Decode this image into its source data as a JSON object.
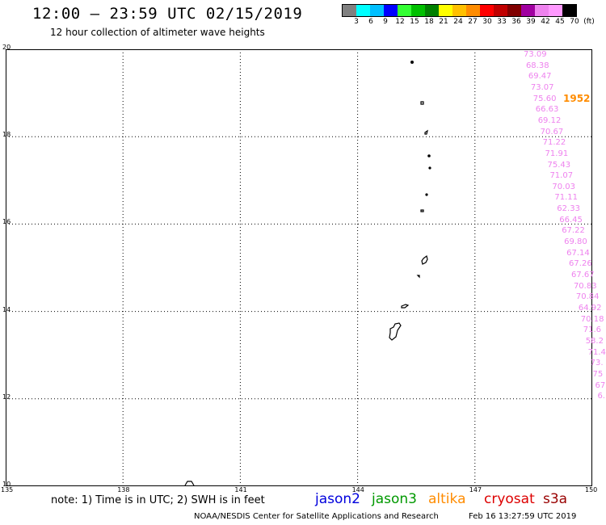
{
  "title": "12:00 – 23:59 UTC 02/15/2019",
  "subtitle": "12 hour collection of altimeter wave heights",
  "color_scale": {
    "unit": "(ft)",
    "swatches": [
      "#808080",
      "#00ffff",
      "#00bfff",
      "#0000ff",
      "#33ff33",
      "#00c000",
      "#008000",
      "#ffff00",
      "#ffc000",
      "#ff8c00",
      "#ff0000",
      "#c00000",
      "#800000",
      "#a000a0",
      "#ee82ee",
      "#ff99ff",
      "#000000"
    ],
    "labels": [
      "3",
      "6",
      "9",
      "12",
      "15",
      "18",
      "21",
      "24",
      "27",
      "30",
      "33",
      "36",
      "39",
      "42",
      "45",
      "70"
    ]
  },
  "y_axis": {
    "labels": [
      "20",
      "18",
      "16",
      "14",
      "12",
      "10"
    ],
    "range": [
      10,
      20
    ]
  },
  "x_axis": {
    "labels": [
      "135",
      "138",
      "141",
      "144",
      "147",
      "150"
    ],
    "range": [
      135,
      150
    ]
  },
  "track": {
    "satellite_id": "1952",
    "values": [
      "73.09",
      "68.38",
      "69.47",
      "73.07",
      "75.60",
      "66.63",
      "69.12",
      "70.67",
      "71.22",
      "71.91",
      "75.43",
      "71.07",
      "70.03",
      "71.11",
      "62.33",
      "66.45",
      "67.22",
      "69.80",
      "67.14",
      "67.26",
      "67.67",
      "70.83",
      "70.84",
      "64.92",
      "70.18",
      "71.6",
      "58.2",
      "71.4",
      "73.",
      "75",
      "67",
      "6."
    ]
  },
  "note": "note: 1) Time is in UTC; 2) SWH is in feet",
  "legend": [
    {
      "label": "jason2",
      "color": "#0000dd"
    },
    {
      "label": "jason3",
      "color": "#009900"
    },
    {
      "label": "altika",
      "color": "#ff8c00"
    },
    {
      "label": "cryosat",
      "color": "#dd0000"
    },
    {
      "label": "s3a",
      "color": "#990000"
    }
  ],
  "footer": "NOAA/NESDIS Center for Satellite Applications and Research",
  "footer_time": "Feb 16 13:27:59 UTC 2019"
}
